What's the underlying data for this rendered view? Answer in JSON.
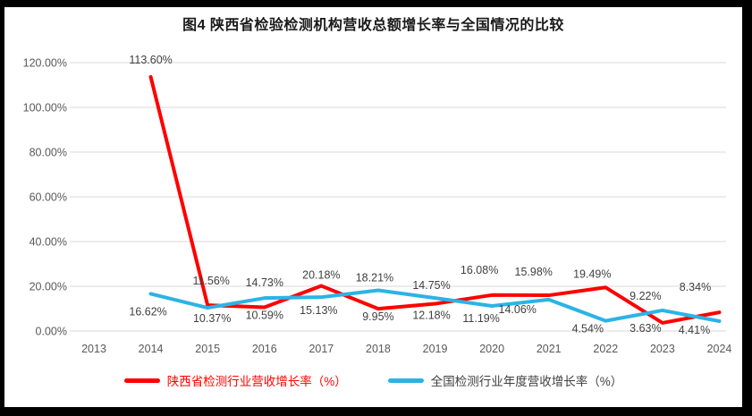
{
  "chart_data": {
    "type": "line",
    "title": "图4 陕西省检验检测机构营收总额增长率与全国情况的比较",
    "categories": [
      "2013",
      "2014",
      "2015",
      "2016",
      "2017",
      "2018",
      "2019",
      "2020",
      "2021",
      "2022",
      "2023",
      "2024"
    ],
    "series": [
      {
        "name": "陕西省检测行业营收增长率（%）",
        "color": "#FF0000",
        "values": [
          null,
          113.6,
          11.56,
          10.59,
          20.18,
          9.95,
          12.18,
          16.08,
          15.98,
          19.49,
          3.63,
          8.34
        ]
      },
      {
        "name": "全国检测行业年度营收增长率（%）",
        "color": "#2CB3E5",
        "values": [
          null,
          16.62,
          10.37,
          14.73,
          15.13,
          18.21,
          14.75,
          11.19,
          14.06,
          4.54,
          9.22,
          4.41
        ]
      }
    ],
    "y_axis": {
      "min": 0,
      "max": 120,
      "step": 20,
      "tick_labels": [
        "0.00%",
        "20.00%",
        "40.00%",
        "60.00%",
        "80.00%",
        "100.00%",
        "120.00%"
      ]
    },
    "grid": true,
    "data_labels": true,
    "label_suffix": "%",
    "legend_position": "bottom",
    "colors": {
      "grid": "#D9D9D9",
      "axis_text": "#595959",
      "data_label_text": "#404040",
      "legend_text_national": "#404040"
    }
  }
}
